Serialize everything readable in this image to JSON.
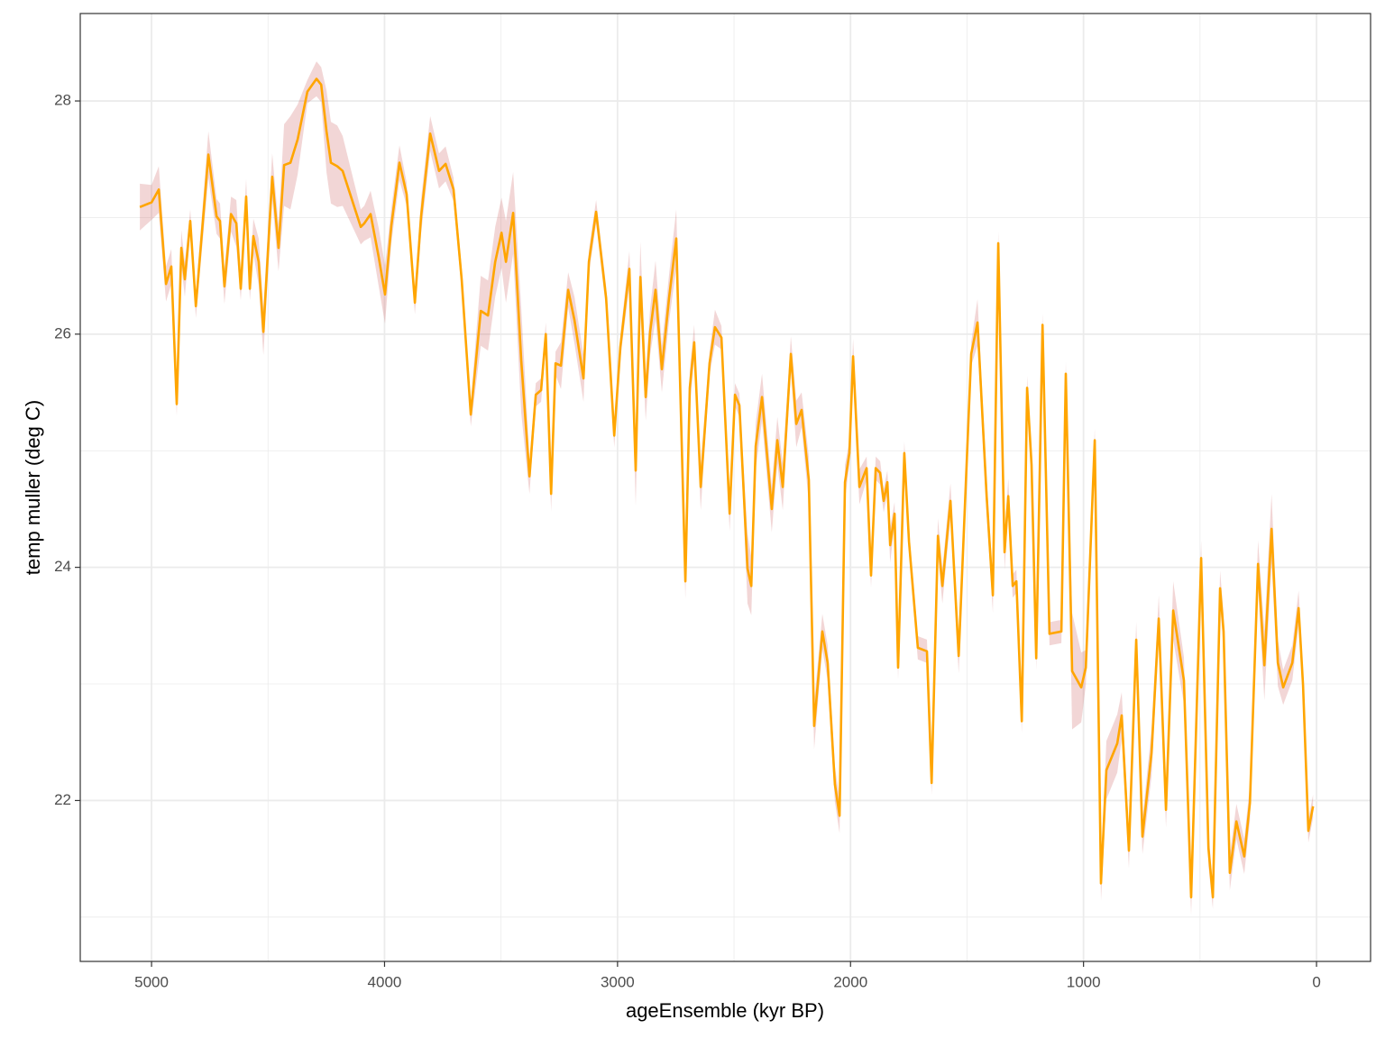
{
  "chart_data": {
    "type": "line",
    "x_label": "ageEnsemble (kyr BP)",
    "y_label": "temp muller (deg C)",
    "xlim": [
      5306,
      -232
    ],
    "ylim": [
      20.62,
      28.75
    ],
    "xticks": [
      5000,
      4000,
      3000,
      2000,
      1000,
      0
    ],
    "yticks": [
      22,
      24,
      26,
      28
    ],
    "xminor_ticks": [
      4500,
      3500,
      2500,
      1500,
      500
    ],
    "yminor_ticks": [
      21,
      23,
      25,
      27
    ],
    "grid": true,
    "color": "#ffa500",
    "band_color": "#cd5c5c",
    "x": [
      5050,
      5000,
      4969,
      4938,
      4915,
      4892,
      4872,
      4857,
      4834,
      4810,
      4756,
      4721,
      4706,
      4687,
      4659,
      4636,
      4617,
      4594,
      4578,
      4563,
      4540,
      4520,
      4482,
      4455,
      4431,
      4404,
      4373,
      4331,
      4292,
      4272,
      4249,
      4230,
      4203,
      4180,
      4102,
      4087,
      4060,
      4025,
      3998,
      3971,
      3936,
      3905,
      3870,
      3843,
      3804,
      3766,
      3738,
      3704,
      3669,
      3630,
      3587,
      3556,
      3525,
      3498,
      3479,
      3448,
      3413,
      3378,
      3351,
      3328,
      3308,
      3285,
      3266,
      3243,
      3212,
      3185,
      3146,
      3123,
      3092,
      3049,
      3014,
      2988,
      2949,
      2922,
      2902,
      2879,
      2860,
      2837,
      2810,
      2779,
      2748,
      2709,
      2690,
      2671,
      2643,
      2605,
      2582,
      2554,
      2519,
      2496,
      2477,
      2442,
      2426,
      2407,
      2380,
      2338,
      2314,
      2291,
      2256,
      2233,
      2210,
      2179,
      2156,
      2121,
      2098,
      2067,
      2047,
      2024,
      2005,
      1989,
      1962,
      1931,
      1912,
      1892,
      1873,
      1858,
      1842,
      1830,
      1811,
      1796,
      1769,
      1749,
      1711,
      1672,
      1652,
      1625,
      1606,
      1571,
      1536,
      1482,
      1455,
      1416,
      1389,
      1366,
      1339,
      1323,
      1304,
      1288,
      1265,
      1242,
      1223,
      1203,
      1176,
      1146,
      1095,
      1076,
      1049,
      1010,
      990,
      952,
      925,
      902,
      855,
      836,
      805,
      774,
      747,
      708,
      677,
      646,
      615,
      569,
      538,
      495,
      464,
      445,
      414,
      399,
      372,
      344,
      310,
      286,
      251,
      224,
      193,
      166,
      143,
      104,
      77,
      58,
      35,
      15
    ],
    "values": [
      27.09,
      27.13,
      27.24,
      26.43,
      26.58,
      25.4,
      26.74,
      26.47,
      26.97,
      26.24,
      27.54,
      27.01,
      26.97,
      26.41,
      27.03,
      26.95,
      26.39,
      27.18,
      26.39,
      26.84,
      26.62,
      26.02,
      27.35,
      26.74,
      27.45,
      27.47,
      27.67,
      28.08,
      28.19,
      28.14,
      27.74,
      27.47,
      27.44,
      27.4,
      26.92,
      26.95,
      27.03,
      26.66,
      26.34,
      26.93,
      27.47,
      27.2,
      26.27,
      27.01,
      27.72,
      27.4,
      27.46,
      27.24,
      26.47,
      25.31,
      26.2,
      26.16,
      26.62,
      26.87,
      26.62,
      27.04,
      25.77,
      24.78,
      25.48,
      25.52,
      26.0,
      24.63,
      25.75,
      25.73,
      26.38,
      26.12,
      25.62,
      26.62,
      27.05,
      26.31,
      25.13,
      25.89,
      26.56,
      24.83,
      26.49,
      25.46,
      26.02,
      26.38,
      25.7,
      26.31,
      26.82,
      23.88,
      25.54,
      25.93,
      24.69,
      25.75,
      26.06,
      25.97,
      24.46,
      25.48,
      25.39,
      23.99,
      23.84,
      25.04,
      25.46,
      24.5,
      25.09,
      24.69,
      25.83,
      25.23,
      25.35,
      24.75,
      22.64,
      23.45,
      23.18,
      22.14,
      21.87,
      24.73,
      24.98,
      25.81,
      24.69,
      24.85,
      23.93,
      24.85,
      24.81,
      24.57,
      24.73,
      24.19,
      24.46,
      23.14,
      24.98,
      24.22,
      23.31,
      23.28,
      22.15,
      24.27,
      23.84,
      24.57,
      23.24,
      25.83,
      26.1,
      24.61,
      23.76,
      26.78,
      24.13,
      24.61,
      23.84,
      23.88,
      22.68,
      25.54,
      24.88,
      23.22,
      26.08,
      23.43,
      23.45,
      25.66,
      23.11,
      22.97,
      23.14,
      25.09,
      21.29,
      22.26,
      22.49,
      22.73,
      21.57,
      23.38,
      21.69,
      22.41,
      23.56,
      21.92,
      23.63,
      23.03,
      21.17,
      24.08,
      21.59,
      21.17,
      23.82,
      23.45,
      21.38,
      21.82,
      21.52,
      21.98,
      24.03,
      23.16,
      24.33,
      23.18,
      22.97,
      23.18,
      23.65,
      22.99,
      21.74,
      21.95
    ],
    "errors": [
      0.2,
      0.15,
      0.2,
      0.15,
      0.15,
      0.1,
      0.15,
      0.15,
      0.1,
      0.1,
      0.2,
      0.15,
      0.15,
      0.15,
      0.15,
      0.2,
      0.1,
      0.15,
      0.1,
      0.15,
      0.2,
      0.2,
      0.2,
      0.2,
      0.35,
      0.4,
      0.3,
      0.1,
      0.15,
      0.15,
      0.35,
      0.35,
      0.35,
      0.3,
      0.15,
      0.15,
      0.2,
      0.25,
      0.25,
      0.15,
      0.15,
      0.1,
      0.1,
      0.15,
      0.15,
      0.15,
      0.15,
      0.1,
      0.1,
      0.1,
      0.3,
      0.3,
      0.3,
      0.3,
      0.35,
      0.35,
      0.45,
      0.15,
      0.1,
      0.1,
      0.1,
      0.15,
      0.1,
      0.2,
      0.15,
      0.2,
      0.2,
      0.1,
      0.1,
      0.1,
      0.1,
      0.1,
      0.15,
      0.3,
      0.3,
      0.2,
      0.2,
      0.25,
      0.2,
      0.2,
      0.25,
      0.15,
      0.15,
      0.15,
      0.2,
      0.1,
      0.15,
      0.1,
      0.15,
      0.1,
      0.1,
      0.3,
      0.25,
      0.2,
      0.2,
      0.2,
      0.2,
      0.2,
      0.15,
      0.2,
      0.15,
      0.2,
      0.2,
      0.15,
      0.15,
      0.15,
      0.15,
      0.15,
      0.1,
      0.15,
      0.15,
      0.1,
      0.1,
      0.1,
      0.1,
      0.1,
      0.1,
      0.15,
      0.1,
      0.1,
      0.1,
      0.1,
      0.1,
      0.1,
      0.1,
      0.15,
      0.15,
      0.15,
      0.15,
      0.1,
      0.2,
      0.15,
      0.15,
      0.1,
      0.15,
      0.15,
      0.1,
      0.1,
      0.1,
      0.1,
      0.1,
      0.1,
      0.1,
      0.1,
      0.1,
      0.1,
      0.5,
      0.3,
      0.15,
      0.1,
      0.15,
      0.25,
      0.25,
      0.2,
      0.15,
      0.15,
      0.15,
      0.2,
      0.2,
      0.15,
      0.25,
      0.2,
      0.15,
      0.15,
      0.15,
      0.1,
      0.15,
      0.15,
      0.15,
      0.15,
      0.15,
      0.15,
      0.2,
      0.3,
      0.3,
      0.2,
      0.15,
      0.15,
      0.15,
      0.1,
      0.1,
      0.1
    ]
  }
}
